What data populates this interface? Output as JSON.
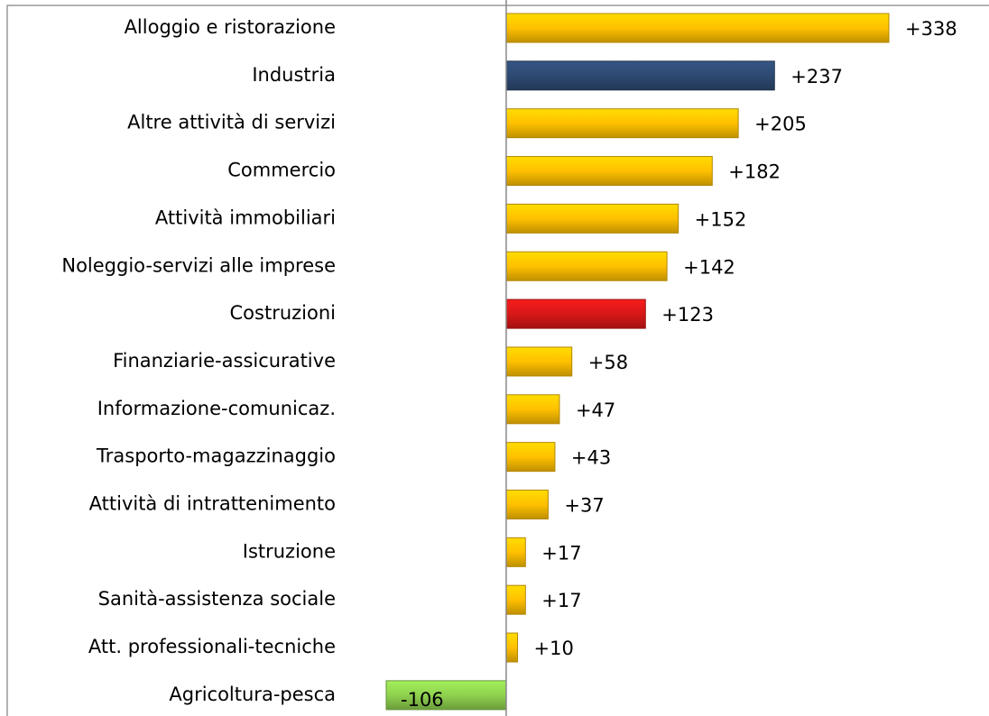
{
  "chart_data": {
    "type": "bar",
    "orientation": "horizontal",
    "categories": [
      "Alloggio e ristorazione",
      "Industria",
      "Altre attività di servizi",
      "Commercio",
      "Attività immobiliari",
      "Noleggio-servizi alle imprese",
      "Costruzioni",
      "Finanziarie-assicurative",
      "Informazione-comunicaz.",
      "Trasporto-magazzinaggio",
      "Attività di intrattenimento",
      "Istruzione",
      "Sanità-assistenza sociale",
      "Att. professionali-tecniche",
      "Agricoltura-pesca"
    ],
    "values": [
      338,
      237,
      205,
      182,
      152,
      142,
      123,
      58,
      47,
      43,
      37,
      17,
      17,
      10,
      -106
    ],
    "value_labels": [
      "+338",
      "+237",
      "+205",
      "+182",
      "+152",
      "+142",
      "+123",
      "+58",
      "+47",
      "+43",
      "+37",
      "+17",
      "+17",
      "+10",
      "-106"
    ],
    "colors": [
      "#ffc000",
      "#2e4a72",
      "#ffc000",
      "#ffc000",
      "#ffc000",
      "#ffc000",
      "#d81818",
      "#ffc000",
      "#ffc000",
      "#ffc000",
      "#ffc000",
      "#ffc000",
      "#ffc000",
      "#ffc000",
      "#8fd14f"
    ]
  }
}
